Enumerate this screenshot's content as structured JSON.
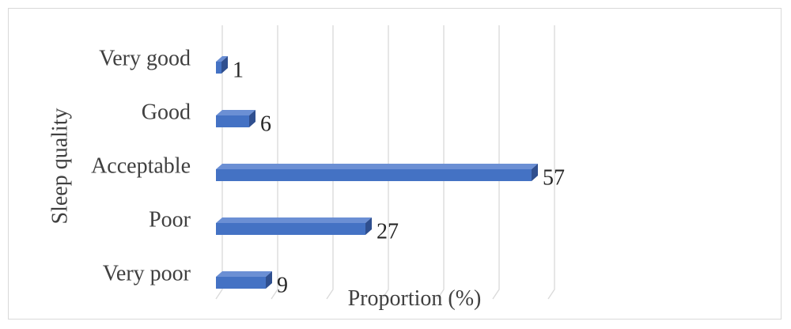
{
  "chart_data": {
    "type": "bar",
    "orientation": "horizontal",
    "style": "3d",
    "categories": [
      "Very good",
      "Good",
      "Acceptable",
      "Poor",
      "Very poor"
    ],
    "values": [
      1,
      6,
      57,
      27,
      9
    ],
    "data_labels": [
      "1",
      "6",
      "57",
      "27",
      "9"
    ],
    "xlabel": "Proportion (%)",
    "ylabel": "Sleep quality",
    "xlim": [
      0,
      60
    ],
    "grid": true,
    "legend": "none",
    "bar_color": "#4472c4"
  }
}
